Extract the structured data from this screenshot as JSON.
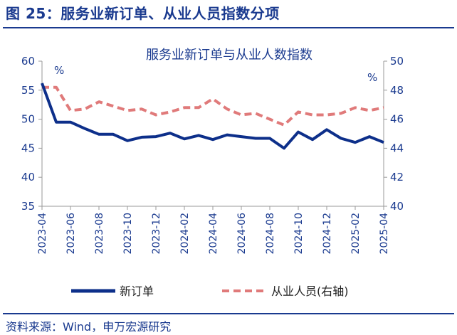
{
  "figure_title": "图 25：服务业新订单、从业人员指数分项",
  "source": "资料来源：Wind，申万宏源研究",
  "colors": {
    "navy": "#1a3a8f",
    "series_new_orders": "#0d2f8a",
    "series_employment": "#e07a7a",
    "axis": "#9a9a9a"
  },
  "chart_data": {
    "type": "line",
    "title": "服务业新订单与从业人数指数",
    "left_unit": "%",
    "right_unit": "%",
    "ylim_left": [
      35,
      60
    ],
    "yticks_left": [
      35,
      40,
      45,
      50,
      55,
      60
    ],
    "ylim_right": [
      40,
      50
    ],
    "yticks_right": [
      40,
      42,
      44,
      46,
      48,
      50
    ],
    "x": [
      "2023-04",
      "2023-05",
      "2023-06",
      "2023-07",
      "2023-08",
      "2023-09",
      "2023-10",
      "2023-11",
      "2023-12",
      "2024-01",
      "2024-02",
      "2024-03",
      "2024-04",
      "2024-05",
      "2024-06",
      "2024-07",
      "2024-08",
      "2024-09",
      "2024-10",
      "2024-11",
      "2024-12",
      "2025-01",
      "2025-02",
      "2025-03",
      "2025-04"
    ],
    "xtick_labels": [
      "2023-04",
      "2023-06",
      "2023-08",
      "2023-10",
      "2023-12",
      "2024-02",
      "2024-04",
      "2024-06",
      "2024-08",
      "2024-10",
      "2024-12",
      "2025-02",
      "2025-04"
    ],
    "series": [
      {
        "name": "新订单",
        "axis": "left",
        "style": "solid",
        "values": [
          56.2,
          49.5,
          49.5,
          48.4,
          47.4,
          47.4,
          46.3,
          46.9,
          47.0,
          47.6,
          46.6,
          47.2,
          46.5,
          47.3,
          47.0,
          46.7,
          46.7,
          45.0,
          47.8,
          46.5,
          48.2,
          46.7,
          46.0,
          47.0,
          46.0
        ]
      },
      {
        "name": "从业人员(右轴)",
        "axis": "right",
        "style": "dashed",
        "values": [
          48.2,
          48.2,
          46.6,
          46.7,
          47.2,
          46.9,
          46.6,
          46.7,
          46.3,
          46.5,
          46.8,
          46.8,
          47.4,
          46.7,
          46.3,
          46.4,
          46.0,
          45.6,
          46.5,
          46.3,
          46.3,
          46.4,
          46.8,
          46.6,
          46.8
        ]
      }
    ]
  }
}
